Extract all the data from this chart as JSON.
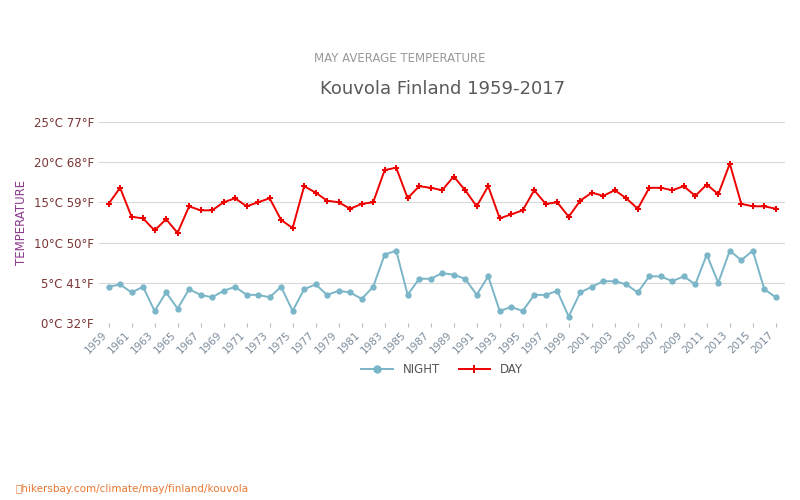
{
  "title": "Kouvola Finland 1959-2017",
  "subtitle": "MAY AVERAGE TEMPERATURE",
  "ylabel": "TEMPERATURE",
  "title_color": "#5a5a5a",
  "subtitle_color": "#999999",
  "ylabel_color": "#8b3a8b",
  "background_color": "#ffffff",
  "years": [
    1959,
    1960,
    1961,
    1962,
    1963,
    1964,
    1965,
    1966,
    1967,
    1968,
    1969,
    1970,
    1971,
    1972,
    1973,
    1974,
    1975,
    1976,
    1977,
    1978,
    1979,
    1980,
    1981,
    1982,
    1983,
    1984,
    1985,
    1986,
    1987,
    1988,
    1989,
    1990,
    1991,
    1992,
    1993,
    1994,
    1995,
    1996,
    1997,
    1998,
    1999,
    2000,
    2001,
    2002,
    2003,
    2004,
    2005,
    2006,
    2007,
    2008,
    2009,
    2010,
    2011,
    2012,
    2013,
    2014,
    2015,
    2016,
    2017
  ],
  "day_temps": [
    14.8,
    16.8,
    13.2,
    13.0,
    11.5,
    12.9,
    11.2,
    14.5,
    14.0,
    14.0,
    15.0,
    15.5,
    14.5,
    15.0,
    15.5,
    12.8,
    11.8,
    17.0,
    16.2,
    15.2,
    15.0,
    14.2,
    14.8,
    15.0,
    19.0,
    19.3,
    15.5,
    17.0,
    16.8,
    16.5,
    18.2,
    16.5,
    14.5,
    17.0,
    13.0,
    13.5,
    14.0,
    16.5,
    14.8,
    15.0,
    13.2,
    15.2,
    16.2,
    15.8,
    16.5,
    15.5,
    14.2,
    16.8,
    16.8,
    16.5,
    17.0,
    15.8,
    17.2,
    16.0,
    19.8,
    14.8,
    14.5,
    14.5,
    14.2
  ],
  "night_temps": [
    4.5,
    4.8,
    3.8,
    4.5,
    1.5,
    3.8,
    1.8,
    4.2,
    3.5,
    3.2,
    4.0,
    4.5,
    3.5,
    3.5,
    3.2,
    4.5,
    1.5,
    4.2,
    4.8,
    3.5,
    4.0,
    3.8,
    3.0,
    4.5,
    8.5,
    9.0,
    3.5,
    5.5,
    5.5,
    6.2,
    6.0,
    5.5,
    3.5,
    5.8,
    1.5,
    2.0,
    1.5,
    3.5,
    3.5,
    4.0,
    0.8,
    3.8,
    4.5,
    5.2,
    5.2,
    4.8,
    3.8,
    5.8,
    5.8,
    5.2,
    5.8,
    4.8,
    8.5,
    5.0,
    9.0,
    7.8,
    9.0,
    4.2,
    3.2
  ],
  "day_color": "#ee0000",
  "night_color": "#7ab5c8",
  "marker_size": 3.5,
  "line_width": 1.4,
  "ylim": [
    0,
    25
  ],
  "yticks_c": [
    0,
    5,
    10,
    15,
    20,
    25
  ],
  "ytick_labels": [
    "0°C 32°F",
    "5°C 41°F",
    "10°C 50°F",
    "15°C 59°F",
    "20°C 68°F",
    "25°C 77°F"
  ],
  "grid_color": "#d8d8d8",
  "legend_night_label": "NIGHT",
  "legend_day_label": "DAY",
  "watermark": "hikersbay.com/climate/may/finland/kouvola",
  "watermark_color": "#e87832",
  "ytick_color": "#7b3535",
  "xtick_color": "#7b8b9b"
}
